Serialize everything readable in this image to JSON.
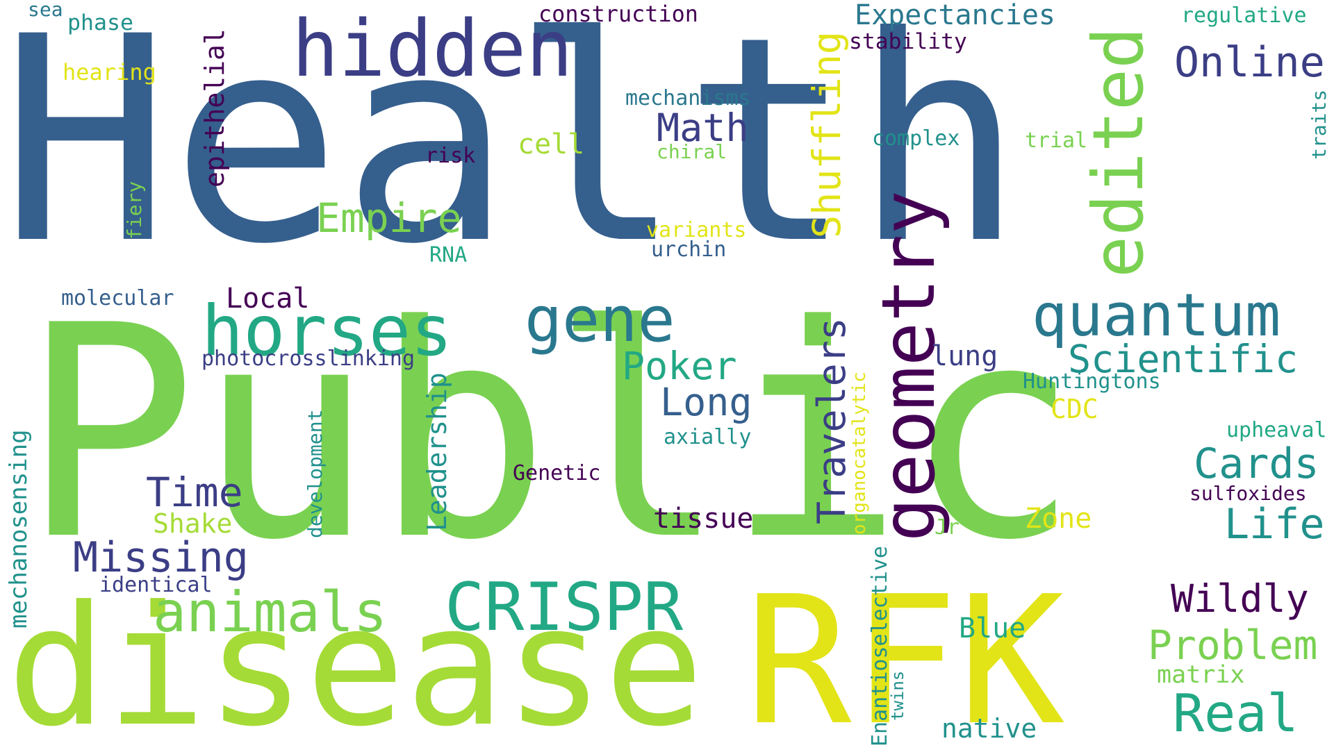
{
  "palette": {
    "dark_purple": "#440154",
    "indigo": "#3b3e85",
    "steel_blue": "#355f8d",
    "teal_blue": "#2a788e",
    "teal": "#21918c",
    "sea_green": "#22a884",
    "green": "#7ad151",
    "lime": "#a5db36",
    "yellow": "#e2e418"
  },
  "words": [
    {
      "text": "Health",
      "color": "steel_blue",
      "orientation": "horizontal"
    },
    {
      "text": "Public",
      "color": "green",
      "orientation": "horizontal"
    },
    {
      "text": "disease",
      "color": "lime",
      "orientation": "horizontal"
    },
    {
      "text": "RFK",
      "color": "yellow",
      "orientation": "horizontal"
    },
    {
      "text": "hidden",
      "color": "indigo",
      "orientation": "horizontal"
    },
    {
      "text": "horses",
      "color": "sea_green",
      "orientation": "horizontal"
    },
    {
      "text": "gene",
      "color": "teal_blue",
      "orientation": "horizontal"
    },
    {
      "text": "quantum",
      "color": "teal_blue",
      "orientation": "horizontal"
    },
    {
      "text": "geometry",
      "color": "dark_purple",
      "orientation": "vertical"
    },
    {
      "text": "edited",
      "color": "green",
      "orientation": "vertical"
    },
    {
      "text": "animals",
      "color": "green",
      "orientation": "horizontal"
    },
    {
      "text": "CRISPR",
      "color": "sea_green",
      "orientation": "horizontal"
    },
    {
      "text": "Real",
      "color": "sea_green",
      "orientation": "horizontal"
    },
    {
      "text": "Online",
      "color": "indigo",
      "orientation": "horizontal"
    },
    {
      "text": "Scientific",
      "color": "teal",
      "orientation": "horizontal"
    },
    {
      "text": "Empire",
      "color": "green",
      "orientation": "horizontal"
    },
    {
      "text": "Math",
      "color": "indigo",
      "orientation": "horizontal"
    },
    {
      "text": "Shuffling",
      "color": "yellow",
      "orientation": "vertical"
    },
    {
      "text": "Travelers",
      "color": "indigo",
      "orientation": "vertical"
    },
    {
      "text": "Missing",
      "color": "indigo",
      "orientation": "horizontal"
    },
    {
      "text": "Problem",
      "color": "green",
      "orientation": "horizontal"
    },
    {
      "text": "Wildly",
      "color": "dark_purple",
      "orientation": "horizontal"
    },
    {
      "text": "Cards",
      "color": "teal",
      "orientation": "horizontal"
    },
    {
      "text": "Life",
      "color": "teal",
      "orientation": "horizontal"
    },
    {
      "text": "Time",
      "color": "indigo",
      "orientation": "horizontal"
    },
    {
      "text": "Long",
      "color": "steel_blue",
      "orientation": "horizontal"
    },
    {
      "text": "Poker",
      "color": "sea_green",
      "orientation": "horizontal"
    },
    {
      "text": "Expectancies",
      "color": "teal_blue",
      "orientation": "horizontal"
    },
    {
      "text": "Local",
      "color": "dark_purple",
      "orientation": "horizontal"
    },
    {
      "text": "epithelial",
      "color": "dark_purple",
      "orientation": "vertical"
    },
    {
      "text": "Leadership",
      "color": "teal",
      "orientation": "vertical"
    },
    {
      "text": "mechanosensing",
      "color": "teal",
      "orientation": "vertical"
    },
    {
      "text": "native",
      "color": "teal",
      "orientation": "horizontal"
    },
    {
      "text": "cell",
      "color": "lime",
      "orientation": "horizontal"
    },
    {
      "text": "lung",
      "color": "indigo",
      "orientation": "horizontal"
    },
    {
      "text": "tissue",
      "color": "dark_purple",
      "orientation": "horizontal"
    },
    {
      "text": "Blue",
      "color": "sea_green",
      "orientation": "horizontal"
    },
    {
      "text": "Zone",
      "color": "yellow",
      "orientation": "horizontal"
    },
    {
      "text": "Shake",
      "color": "lime",
      "orientation": "horizontal"
    },
    {
      "text": "matrix",
      "color": "green",
      "orientation": "horizontal"
    },
    {
      "text": "construction",
      "color": "dark_purple",
      "orientation": "horizontal"
    },
    {
      "text": "stability",
      "color": "dark_purple",
      "orientation": "horizontal"
    },
    {
      "text": "regulative",
      "color": "sea_green",
      "orientation": "horizontal"
    },
    {
      "text": "traits",
      "color": "teal",
      "orientation": "vertical"
    },
    {
      "text": "mechanisms",
      "color": "teal_blue",
      "orientation": "horizontal"
    },
    {
      "text": "complex",
      "color": "teal",
      "orientation": "horizontal"
    },
    {
      "text": "trial",
      "color": "green",
      "orientation": "horizontal"
    },
    {
      "text": "chiral",
      "color": "green",
      "orientation": "horizontal"
    },
    {
      "text": "risk",
      "color": "dark_purple",
      "orientation": "horizontal"
    },
    {
      "text": "variants",
      "color": "yellow",
      "orientation": "horizontal"
    },
    {
      "text": "urchin",
      "color": "steel_blue",
      "orientation": "horizontal"
    },
    {
      "text": "RNA",
      "color": "sea_green",
      "orientation": "horizontal"
    },
    {
      "text": "molecular",
      "color": "steel_blue",
      "orientation": "horizontal"
    },
    {
      "text": "photocrosslinking",
      "color": "indigo",
      "orientation": "horizontal"
    },
    {
      "text": "Huntingtons",
      "color": "teal",
      "orientation": "horizontal"
    },
    {
      "text": "CDC",
      "color": "yellow",
      "orientation": "horizontal"
    },
    {
      "text": "upheaval",
      "color": "sea_green",
      "orientation": "horizontal"
    },
    {
      "text": "sulfoxides",
      "color": "dark_purple",
      "orientation": "horizontal"
    },
    {
      "text": "Genetic",
      "color": "dark_purple",
      "orientation": "horizontal"
    },
    {
      "text": "axially",
      "color": "teal",
      "orientation": "horizontal"
    },
    {
      "text": "organocatalytic",
      "color": "yellow",
      "orientation": "vertical"
    },
    {
      "text": "development",
      "color": "teal",
      "orientation": "vertical"
    },
    {
      "text": "Jr",
      "color": "green",
      "orientation": "horizontal"
    },
    {
      "text": "identical",
      "color": "indigo",
      "orientation": "horizontal"
    },
    {
      "text": "Enantioselective",
      "color": "teal",
      "orientation": "vertical"
    },
    {
      "text": "twins",
      "color": "teal",
      "orientation": "vertical"
    },
    {
      "text": "hearing",
      "color": "yellow",
      "orientation": "horizontal"
    },
    {
      "text": "fiery",
      "color": "green",
      "orientation": "vertical"
    },
    {
      "text": "sea",
      "color": "teal_blue",
      "orientation": "horizontal"
    },
    {
      "text": "phase",
      "color": "teal",
      "orientation": "horizontal"
    }
  ]
}
